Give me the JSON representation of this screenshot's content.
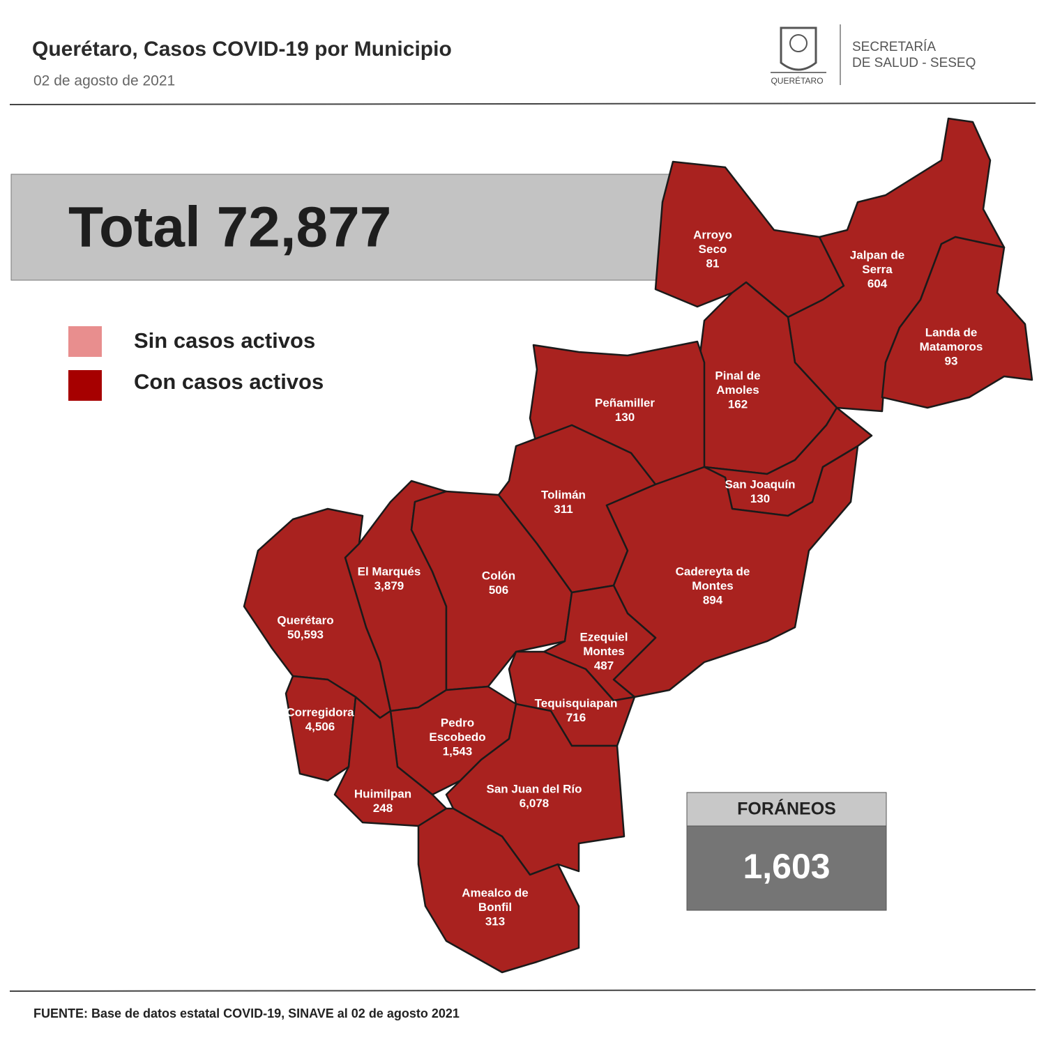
{
  "header": {
    "title": "Querétaro, Casos COVID-19 por Municipio",
    "date": "02 de agosto de 2021",
    "logo_text": "QUERÉTARO",
    "agency": [
      "SECRETARÍA",
      "DE SALUD - SESEQ"
    ]
  },
  "total": "Total 72,877",
  "legend": [
    "Sin casos activos",
    "Con casos activos"
  ],
  "municipalities": [
    {
      "name": [
        "Arroyo",
        "Seco"
      ],
      "value": "81"
    },
    {
      "name": [
        "Jalpan de",
        "Serra"
      ],
      "value": "604"
    },
    {
      "name": [
        "Landa de",
        "Matamoros"
      ],
      "value": "93"
    },
    {
      "name": [
        "Pinal de",
        "Amoles"
      ],
      "value": "162"
    },
    {
      "name": [
        "Peñamiller"
      ],
      "value": "130"
    },
    {
      "name": [
        "San Joaquín"
      ],
      "value": "130"
    },
    {
      "name": [
        "Tolimán"
      ],
      "value": "311"
    },
    {
      "name": [
        "Cadereyta de",
        "Montes"
      ],
      "value": "894"
    },
    {
      "name": [
        "El  Marqués"
      ],
      "value": "3,879"
    },
    {
      "name": [
        "Colón"
      ],
      "value": "506"
    },
    {
      "name": [
        "Querétaro"
      ],
      "value": "50,593"
    },
    {
      "name": [
        "Ezequiel",
        "Montes"
      ],
      "value": "487"
    },
    {
      "name": [
        "Tequisquiapan"
      ],
      "value": "716"
    },
    {
      "name": [
        "Corregidora"
      ],
      "value": "4,506"
    },
    {
      "name": [
        "Pedro",
        "Escobedo"
      ],
      "value": "1,543"
    },
    {
      "name": [
        "Huimilpan"
      ],
      "value": "248"
    },
    {
      "name": [
        "San Juan del Río"
      ],
      "value": "6,078"
    },
    {
      "name": [
        "Amealco de",
        "Bonfil"
      ],
      "value": "313"
    }
  ],
  "foraneos": {
    "label": "FORÁNEOS",
    "value": "1,603"
  },
  "footer": "FUENTE:  Base de datos estatal COVID-19,  SINAVE  al 02 de agosto 2021"
}
